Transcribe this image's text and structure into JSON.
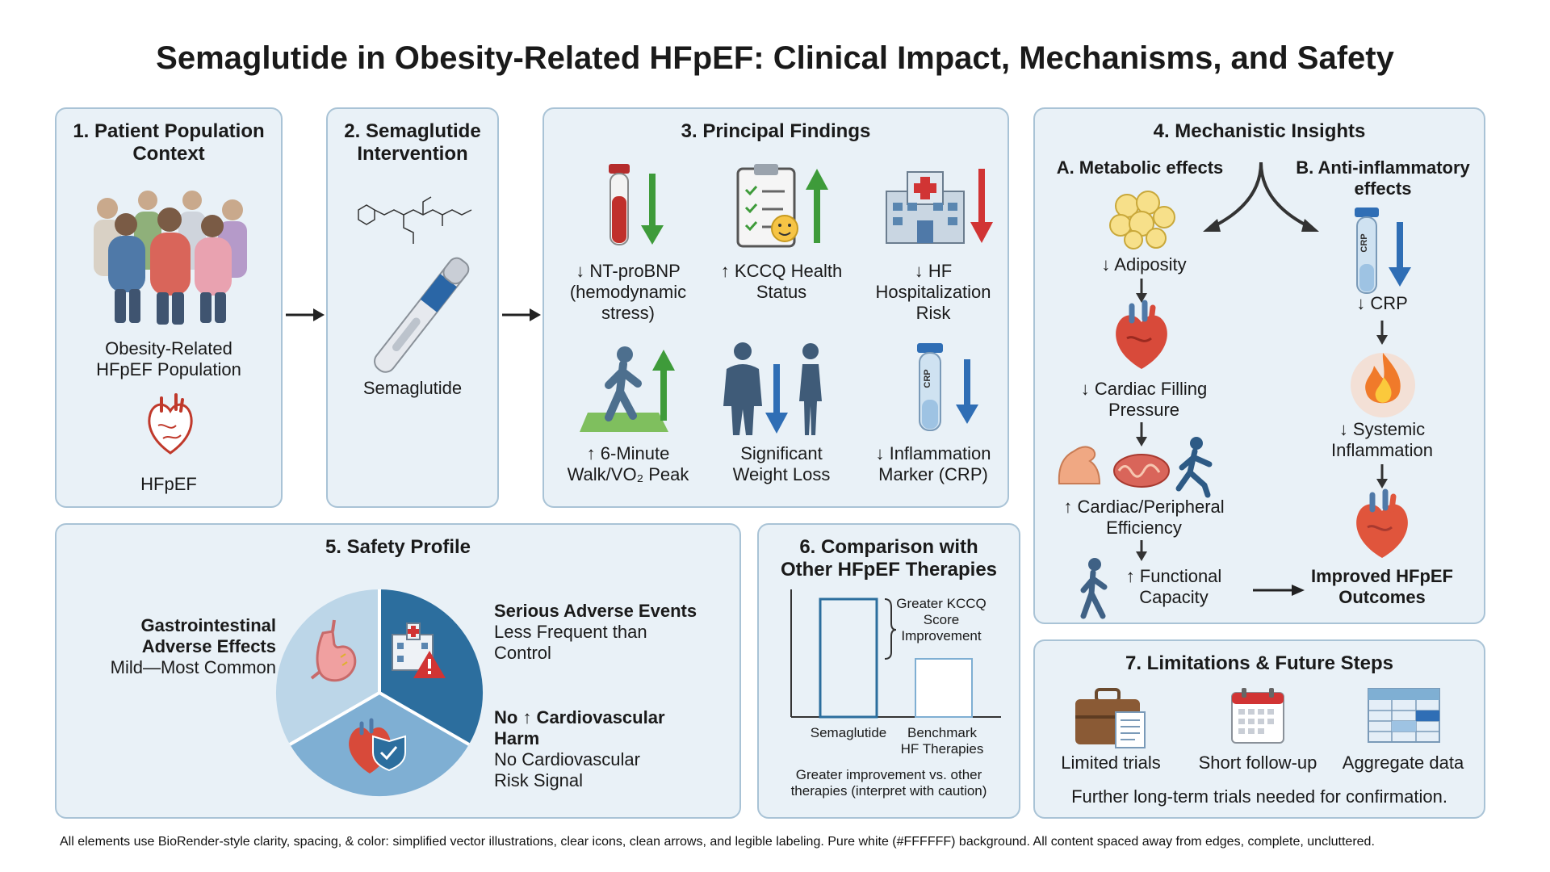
{
  "title": "Semaglutide in Obesity-Related HFpEF: Clinical Impact, Mechanisms, and Safety",
  "panel1": {
    "title_line1": "1. Patient Population",
    "title_line2": "Context",
    "population_line1": "Obesity-Related",
    "population_line2": "HFpEF Population",
    "hfpef_label": "HFpEF"
  },
  "panel2": {
    "title_line1": "2. Semaglutide",
    "title_line2": "Intervention",
    "drug_label": "Semaglutide"
  },
  "panel3": {
    "title": "3. Principal Findings",
    "findings": [
      {
        "line1": "↓ NT-proBNP",
        "line2": "(hemodynamic",
        "line3": "stress)"
      },
      {
        "line1": "↑ KCCQ Health",
        "line2": "Status",
        "line3": ""
      },
      {
        "line1": "↓ HF",
        "line2": "Hospitalization",
        "line3": "Risk"
      },
      {
        "line1": "↑ 6-Minute",
        "line2": "Walk/VO₂ Peak",
        "line3": ""
      },
      {
        "line1": "Significant",
        "line2": "Weight Loss",
        "line3": ""
      },
      {
        "line1": "↓ Inflammation",
        "line2": "Marker (CRP)",
        "line3": ""
      }
    ],
    "crp_tube_text": "CRP"
  },
  "panel4": {
    "title": "4. Mechanistic Insights",
    "branch_a": "A. Metabolic effects",
    "branch_b_line1": "B. Anti-inflammatory",
    "branch_b_line2": "effects",
    "adiposity": "↓ Adiposity",
    "filling_line1": "↓ Cardiac Filling",
    "filling_line2": "Pressure",
    "efficiency_line1": "↑ Cardiac/Peripheral",
    "efficiency_line2": "Efficiency",
    "functional_line1": "↑ Functional",
    "functional_line2": "Capacity",
    "crp": "↓ CRP",
    "crp_tube_text": "CRP",
    "systemic_line1": "↓ Systemic",
    "systemic_line2": "Inflammation",
    "outcome_line1": "Improved HFpEF",
    "outcome_line2": "Outcomes"
  },
  "panel5": {
    "title": "5. Safety Profile",
    "gi_line1": "Gastrointestinal",
    "gi_line2": "Adverse Effects",
    "gi_line3": "Mild—Most Common",
    "sae_title": "Serious Adverse Events",
    "sae_line1": "Less Frequent than",
    "sae_line2": "Control",
    "cv_title_line1": "No ↑ Cardiovascular",
    "cv_title_line2": "Harm",
    "cv_line1": "No Cardiovascular",
    "cv_line2": "Risk Signal"
  },
  "panel6": {
    "title_line1": "6. Comparison with",
    "title_line2": "Other HFpEF Therapies",
    "bracket_line1": "Greater KCCQ",
    "bracket_line2": "Score",
    "bracket_line3": "Improvement",
    "bar1_label": "Semaglutide",
    "bar2_label_line1": "Benchmark",
    "bar2_label_line2": "HF Therapies",
    "note_line1": "Greater improvement vs. other",
    "note_line2": "therapies (interpret with caution)"
  },
  "panel7": {
    "title": "7. Limitations & Future Steps",
    "items": [
      "Limited trials",
      "Short follow-up",
      "Aggregate data"
    ],
    "note": "Further long-term trials needed for confirmation."
  },
  "footer": "All elements use BioRender-style clarity, spacing, & color: simplified vector illustrations, clear icons, clean arrows, and legible labeling. Pure white (#FFFFFF) background. All content spaced away from edges, complete, uncluttered.",
  "colors": {
    "panel_bg": "#E9F1F7",
    "panel_border": "#A9C3D6",
    "arrow_up": "#3E9B3A",
    "arrow_down_red": "#D13434",
    "arrow_down_blue": "#2F6EB5",
    "pie_dark": "#2C6E9E",
    "pie_mid": "#7FAFD3",
    "pie_light": "#BCD6E8"
  }
}
